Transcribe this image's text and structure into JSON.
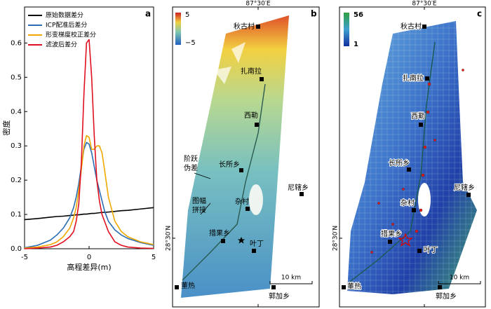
{
  "chart_data": {
    "type": "line",
    "panel": "a",
    "xlabel": "高程差异(m)",
    "ylabel": "密度",
    "x": [
      -5,
      -4,
      -3,
      -2.5,
      -2,
      -1.5,
      -1.2,
      -1,
      -0.8,
      -0.6,
      -0.4,
      -0.2,
      0,
      0.2,
      0.4,
      0.6,
      0.8,
      1,
      1.2,
      1.5,
      2,
      2.5,
      3,
      4,
      5
    ],
    "series": [
      {
        "name": "原始数据差分",
        "color": "#000000",
        "values": [
          0.085,
          0.088,
          0.092,
          0.094,
          0.095,
          0.097,
          0.098,
          0.099,
          0.099,
          0.1,
          0.101,
          0.101,
          0.102,
          0.103,
          0.103,
          0.104,
          0.105,
          0.106,
          0.106,
          0.107,
          0.109,
          0.111,
          0.112,
          0.116,
          0.12
        ]
      },
      {
        "name": "ICP配准后差分",
        "color": "#2a6db5",
        "values": [
          0.003,
          0.01,
          0.025,
          0.04,
          0.06,
          0.09,
          0.12,
          0.15,
          0.19,
          0.24,
          0.29,
          0.31,
          0.305,
          0.28,
          0.24,
          0.2,
          0.17,
          0.14,
          0.11,
          0.08,
          0.055,
          0.04,
          0.03,
          0.018,
          0.01
        ]
      },
      {
        "name": "形变梯度校正差分",
        "color": "#f0a800",
        "values": [
          0.002,
          0.005,
          0.012,
          0.02,
          0.035,
          0.06,
          0.09,
          0.12,
          0.17,
          0.23,
          0.3,
          0.33,
          0.325,
          0.29,
          0.29,
          0.3,
          0.3,
          0.28,
          0.23,
          0.15,
          0.08,
          0.05,
          0.035,
          0.02,
          0.012
        ]
      },
      {
        "name": "滤波后差分",
        "color": "#e01020",
        "values": [
          0.0,
          0.002,
          0.005,
          0.01,
          0.02,
          0.035,
          0.05,
          0.08,
          0.13,
          0.25,
          0.45,
          0.6,
          0.61,
          0.5,
          0.33,
          0.2,
          0.14,
          0.1,
          0.08,
          0.05,
          0.02,
          0.01,
          0.005,
          0.002,
          0.001
        ]
      }
    ],
    "xlim": [
      -5,
      5
    ],
    "xticks": [
      -5,
      0,
      5
    ],
    "ylim": [
      0,
      0.705
    ],
    "yticks": [
      {
        "value": 0,
        "label": "0.0"
      },
      0.1,
      0.2,
      0.3,
      0.4,
      0.5,
      0.6
    ],
    "legend": "upper left"
  },
  "maps": [
    {
      "panel": "b",
      "lon_label": "87°30′E",
      "lat_label": "28°30′N",
      "colorbar": [
        5,
        {
          "value": -5,
          "label": "−5"
        }
      ],
      "places": [
        "秋古村",
        "扎南拉",
        "西勒",
        "长所乡",
        "尼辖乡",
        "杂村",
        "措果乡",
        "叶丁",
        "董热",
        "郭加乡"
      ],
      "annotations": [
        "阶跃",
        "伪差",
        "图幅",
        "拼接"
      ],
      "scale": "10 km"
    },
    {
      "panel": "c",
      "lon_label": "87°30′E",
      "lat_label": "28°30′N",
      "colorbar": [
        56,
        1
      ],
      "places": [
        "秋古村",
        "扎南拉",
        "西勒",
        "长所乡",
        "尼辖乡",
        "杂村",
        "措果乡",
        "叶丁",
        "董热",
        "郭加乡"
      ],
      "scale": "10 km"
    }
  ]
}
